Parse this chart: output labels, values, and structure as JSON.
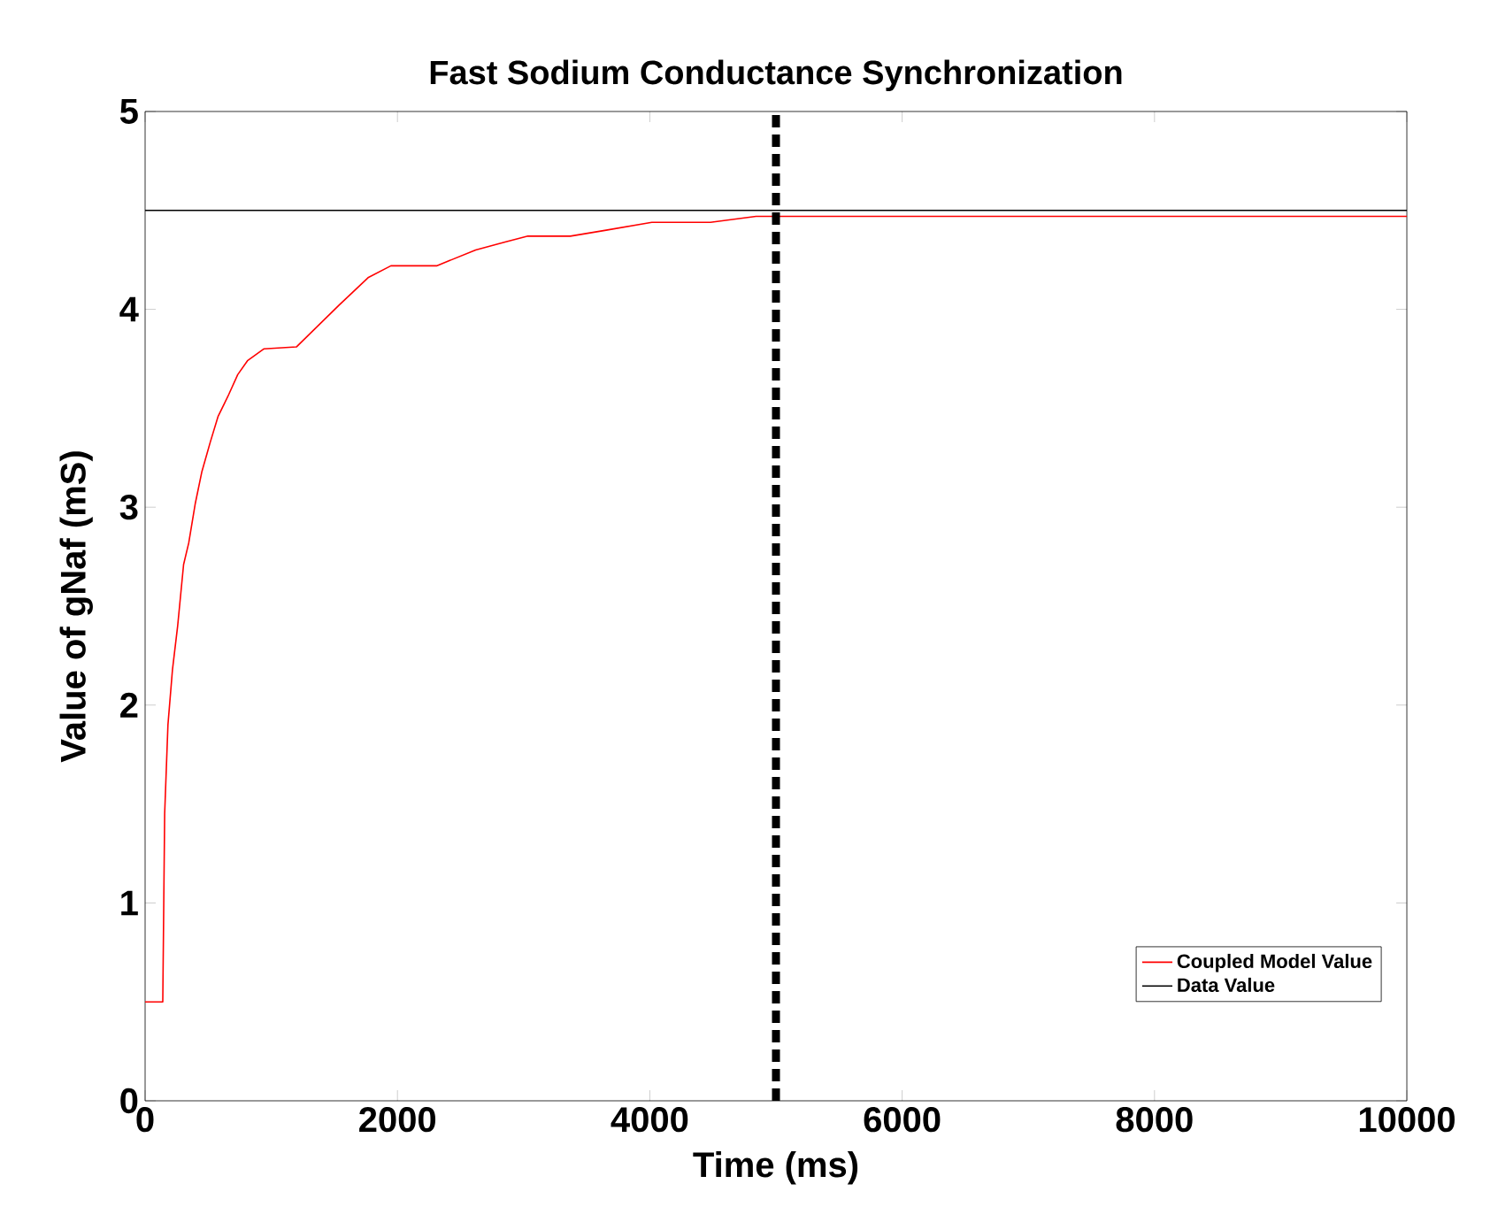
{
  "chart_data": {
    "type": "line",
    "title": "Fast Sodium Conductance Synchronization",
    "xlabel": "Time (ms)",
    "ylabel": "Value of gNaf (mS)",
    "xlim": [
      0,
      10000
    ],
    "ylim": [
      0,
      5
    ],
    "xticks": [
      0,
      2000,
      4000,
      6000,
      8000,
      10000
    ],
    "yticks": [
      0,
      1,
      2,
      3,
      4,
      5
    ],
    "grid": false,
    "legend": "bottom right",
    "marker": "none",
    "line_style": "solid",
    "series": [
      {
        "name": "Coupled Model Value",
        "color": "#ff0000",
        "x": [
          0,
          140,
          155,
          181,
          217,
          258,
          305,
          346,
          398,
          450,
          517,
          579,
          656,
          734,
          811,
          940,
          1199,
          1535,
          1767,
          1948,
          2310,
          2620,
          2853,
          3034,
          3370,
          3654,
          4016,
          4481,
          4842,
          5798,
          10000
        ],
        "values": [
          0.5,
          0.5,
          1.45,
          1.9,
          2.18,
          2.4,
          2.71,
          2.82,
          3.02,
          3.18,
          3.33,
          3.46,
          3.56,
          3.67,
          3.74,
          3.8,
          3.81,
          4.02,
          4.16,
          4.22,
          4.22,
          4.3,
          4.34,
          4.37,
          4.37,
          4.4,
          4.44,
          4.44,
          4.47,
          4.47,
          4.47
        ]
      },
      {
        "name": "Data Value",
        "color": "#000000",
        "x": [
          0,
          10000
        ],
        "values": [
          4.5,
          4.5
        ]
      }
    ],
    "ref_lines": [
      {
        "axis": "x",
        "value": 5000,
        "color": "#000000",
        "line_style": "dashed"
      }
    ]
  }
}
